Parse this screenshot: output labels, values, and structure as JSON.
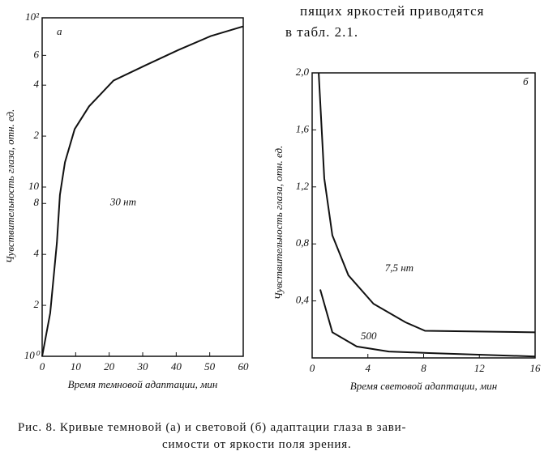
{
  "text": [
    "пящих яркостей приводятся",
    "в табл. 2.1."
  ],
  "caption": [
    "Рис. 8. Кривые темновой (а) и световой (б) адаптации глаза в зави-",
    "симости от яркости поля зрения."
  ],
  "chart_data": [
    {
      "type": "line",
      "panel_label": "а",
      "xlabel": "Время темновой адаптации, мин",
      "ylabel": "Чувствительность глаза, отн. ед.",
      "log_y": true,
      "xlim": [
        0,
        60
      ],
      "ylim": [
        1,
        100
      ],
      "xticks": [
        0,
        10,
        20,
        30,
        40,
        50,
        60
      ],
      "yticks": [
        {
          "value": 1,
          "label": "10⁰"
        },
        2,
        4,
        8,
        10,
        {
          "value": 20,
          "label": "2"
        },
        {
          "value": 40,
          "label": "4"
        },
        {
          "value": 60,
          "label": "6"
        },
        {
          "value": 100,
          "label": "10²"
        }
      ],
      "x": [
        0,
        2.4,
        4.4,
        5.3,
        6.8,
        9.7,
        14,
        21.3,
        31,
        40.6,
        50.3,
        60
      ],
      "series": [
        {
          "name": "30 нт",
          "color": "#111",
          "values": [
            1,
            1.8,
            4.7,
            9,
            14,
            22,
            30,
            42.6,
            52.6,
            64.5,
            78,
            89
          ]
        }
      ]
    },
    {
      "type": "line",
      "panel_label": "б",
      "xlabel": "Время световой адаптации, мин",
      "ylabel": "Чувствительность глаза, отн. ед.",
      "xlim": [
        0,
        16
      ],
      "ylim": [
        0,
        2
      ],
      "xticks": [
        0,
        4,
        8,
        12,
        16
      ],
      "yticks": [
        {
          "value": 0.4,
          "label": "0,4"
        },
        {
          "value": 0.8,
          "label": "0,8"
        },
        {
          "value": 1.2,
          "label": "1,2"
        },
        {
          "value": 1.6,
          "label": "1,6"
        },
        {
          "value": 2,
          "label": "2,0"
        }
      ],
      "series": [
        {
          "name": "7,5 нт",
          "color": "#111",
          "x": [
            0.47,
            0.87,
            1.45,
            2.6,
            4.4,
            6.7,
            8.1,
            16
          ],
          "values": [
            2,
            1.26,
            0.86,
            0.58,
            0.38,
            0.25,
            0.19,
            0.18
          ]
        },
        {
          "name": "500",
          "color": "#111",
          "x": [
            0.58,
            1.45,
            3.2,
            5.5,
            8.4,
            16
          ],
          "values": [
            0.48,
            0.18,
            0.08,
            0.045,
            0.034,
            0.01
          ]
        }
      ]
    }
  ]
}
